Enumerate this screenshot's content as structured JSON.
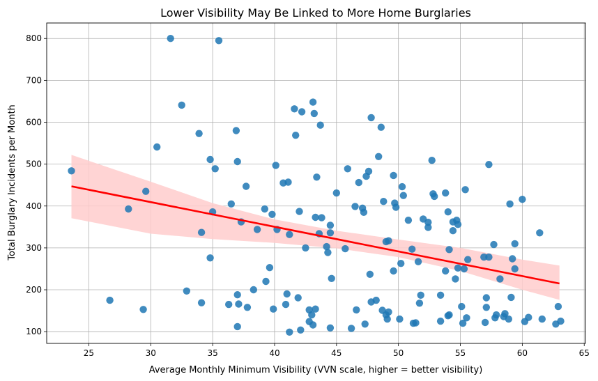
{
  "chart_data": {
    "type": "scatter",
    "title": "Lower Visibility May Be Linked to More Home Burglaries",
    "xlabel": "Average Monthly Minimum Visibility (VVN scale, higher = better visibility)",
    "ylabel": "Total Burglary Incidents per Month",
    "xlim": [
      21.6,
      65.1
    ],
    "ylim": [
      72,
      837
    ],
    "xticks": [
      25,
      30,
      35,
      40,
      45,
      50,
      55,
      60,
      65
    ],
    "yticks": [
      100,
      200,
      300,
      400,
      500,
      600,
      700,
      800
    ],
    "grid": true,
    "colors": {
      "points": "#1f77b4",
      "regression_line": "#ff0000",
      "confidence_band": "#ffcccc"
    },
    "regression": {
      "x": [
        23.6,
        63.0
      ],
      "y": [
        447,
        215
      ]
    },
    "confidence_band": {
      "x": [
        23.6,
        30,
        35,
        40,
        45,
        50,
        55,
        60,
        63.0
      ],
      "lower": [
        371,
        334,
        321,
        312,
        299,
        278,
        245,
        200,
        176
      ],
      "upper": [
        522,
        458,
        407,
        368,
        341,
        320,
        300,
        272,
        258
      ]
    },
    "points": [
      [
        23.6,
        484
      ],
      [
        26.7,
        175
      ],
      [
        28.2,
        393
      ],
      [
        29.4,
        153
      ],
      [
        29.6,
        435
      ],
      [
        30.5,
        541
      ],
      [
        31.6,
        800
      ],
      [
        32.5,
        641
      ],
      [
        32.9,
        197
      ],
      [
        33.9,
        573
      ],
      [
        34.1,
        337
      ],
      [
        34.1,
        169
      ],
      [
        34.8,
        511
      ],
      [
        34.8,
        276
      ],
      [
        35.0,
        386
      ],
      [
        35.2,
        489
      ],
      [
        35.5,
        795
      ],
      [
        36.5,
        405
      ],
      [
        36.3,
        165
      ],
      [
        36.9,
        580
      ],
      [
        37.0,
        506
      ],
      [
        37.0,
        188
      ],
      [
        37.0,
        112
      ],
      [
        37.1,
        166
      ],
      [
        37.3,
        362
      ],
      [
        37.7,
        447
      ],
      [
        37.8,
        158
      ],
      [
        38.3,
        200
      ],
      [
        38.6,
        344
      ],
      [
        39.2,
        393
      ],
      [
        39.3,
        220
      ],
      [
        39.6,
        253
      ],
      [
        39.8,
        380
      ],
      [
        39.9,
        154
      ],
      [
        40.1,
        497
      ],
      [
        40.2,
        344
      ],
      [
        40.7,
        455
      ],
      [
        40.9,
        165
      ],
      [
        41.0,
        190
      ],
      [
        41.1,
        457
      ],
      [
        41.2,
        332
      ],
      [
        41.2,
        99
      ],
      [
        41.6,
        632
      ],
      [
        41.7,
        569
      ],
      [
        41.9,
        181
      ],
      [
        42.0,
        387
      ],
      [
        42.1,
        104
      ],
      [
        42.2,
        625
      ],
      [
        42.5,
        300
      ],
      [
        42.8,
        152
      ],
      [
        42.8,
        124
      ],
      [
        43.0,
        140
      ],
      [
        43.1,
        116
      ],
      [
        43.1,
        648
      ],
      [
        43.2,
        621
      ],
      [
        43.3,
        154
      ],
      [
        43.3,
        373
      ],
      [
        43.4,
        469
      ],
      [
        43.6,
        334
      ],
      [
        43.7,
        593
      ],
      [
        43.8,
        372
      ],
      [
        44.2,
        303
      ],
      [
        44.3,
        289
      ],
      [
        44.5,
        354
      ],
      [
        44.5,
        336
      ],
      [
        44.5,
        109
      ],
      [
        44.6,
        227
      ],
      [
        45.0,
        431
      ],
      [
        45.7,
        298
      ],
      [
        45.9,
        489
      ],
      [
        46.2,
        108
      ],
      [
        46.5,
        399
      ],
      [
        46.6,
        152
      ],
      [
        46.8,
        456
      ],
      [
        47.1,
        395
      ],
      [
        47.2,
        385
      ],
      [
        47.3,
        118
      ],
      [
        47.4,
        471
      ],
      [
        47.6,
        483
      ],
      [
        47.7,
        237
      ],
      [
        47.8,
        611
      ],
      [
        47.8,
        171
      ],
      [
        48.2,
        175
      ],
      [
        48.4,
        518
      ],
      [
        48.6,
        588
      ],
      [
        48.7,
        151
      ],
      [
        48.8,
        411
      ],
      [
        49.0,
        140
      ],
      [
        49.0,
        315
      ],
      [
        49.1,
        130
      ],
      [
        49.2,
        317
      ],
      [
        49.2,
        147
      ],
      [
        49.6,
        473
      ],
      [
        49.6,
        245
      ],
      [
        49.7,
        407
      ],
      [
        49.8,
        397
      ],
      [
        50.1,
        130
      ],
      [
        50.2,
        263
      ],
      [
        50.3,
        446
      ],
      [
        50.4,
        425
      ],
      [
        50.8,
        366
      ],
      [
        51.1,
        297
      ],
      [
        51.2,
        120
      ],
      [
        51.4,
        121
      ],
      [
        51.6,
        267
      ],
      [
        51.7,
        168
      ],
      [
        51.8,
        187
      ],
      [
        52.0,
        369
      ],
      [
        52.4,
        361
      ],
      [
        52.4,
        349
      ],
      [
        52.7,
        509
      ],
      [
        52.8,
        429
      ],
      [
        52.9,
        423
      ],
      [
        53.4,
        125
      ],
      [
        53.4,
        187
      ],
      [
        53.8,
        431
      ],
      [
        53.8,
        245
      ],
      [
        54.0,
        138
      ],
      [
        54.0,
        386
      ],
      [
        54.1,
        140
      ],
      [
        54.1,
        296
      ],
      [
        54.4,
        341
      ],
      [
        54.4,
        362
      ],
      [
        54.6,
        226
      ],
      [
        54.7,
        366
      ],
      [
        54.8,
        356
      ],
      [
        54.8,
        252
      ],
      [
        55.1,
        160
      ],
      [
        55.2,
        120
      ],
      [
        55.3,
        250
      ],
      [
        55.4,
        439
      ],
      [
        55.5,
        133
      ],
      [
        55.6,
        272
      ],
      [
        56.9,
        278
      ],
      [
        57.0,
        122
      ],
      [
        57.1,
        158
      ],
      [
        57.1,
        181
      ],
      [
        57.3,
        499
      ],
      [
        57.3,
        278
      ],
      [
        57.7,
        308
      ],
      [
        57.8,
        133
      ],
      [
        57.9,
        140
      ],
      [
        58.2,
        226
      ],
      [
        58.5,
        136
      ],
      [
        58.6,
        143
      ],
      [
        58.9,
        130
      ],
      [
        59.0,
        405
      ],
      [
        59.1,
        182
      ],
      [
        59.2,
        274
      ],
      [
        59.4,
        310
      ],
      [
        59.4,
        250
      ],
      [
        60.0,
        416
      ],
      [
        60.2,
        124
      ],
      [
        60.5,
        134
      ],
      [
        61.4,
        336
      ],
      [
        61.6,
        130
      ],
      [
        62.7,
        118
      ],
      [
        62.9,
        160
      ],
      [
        63.1,
        125
      ]
    ]
  }
}
